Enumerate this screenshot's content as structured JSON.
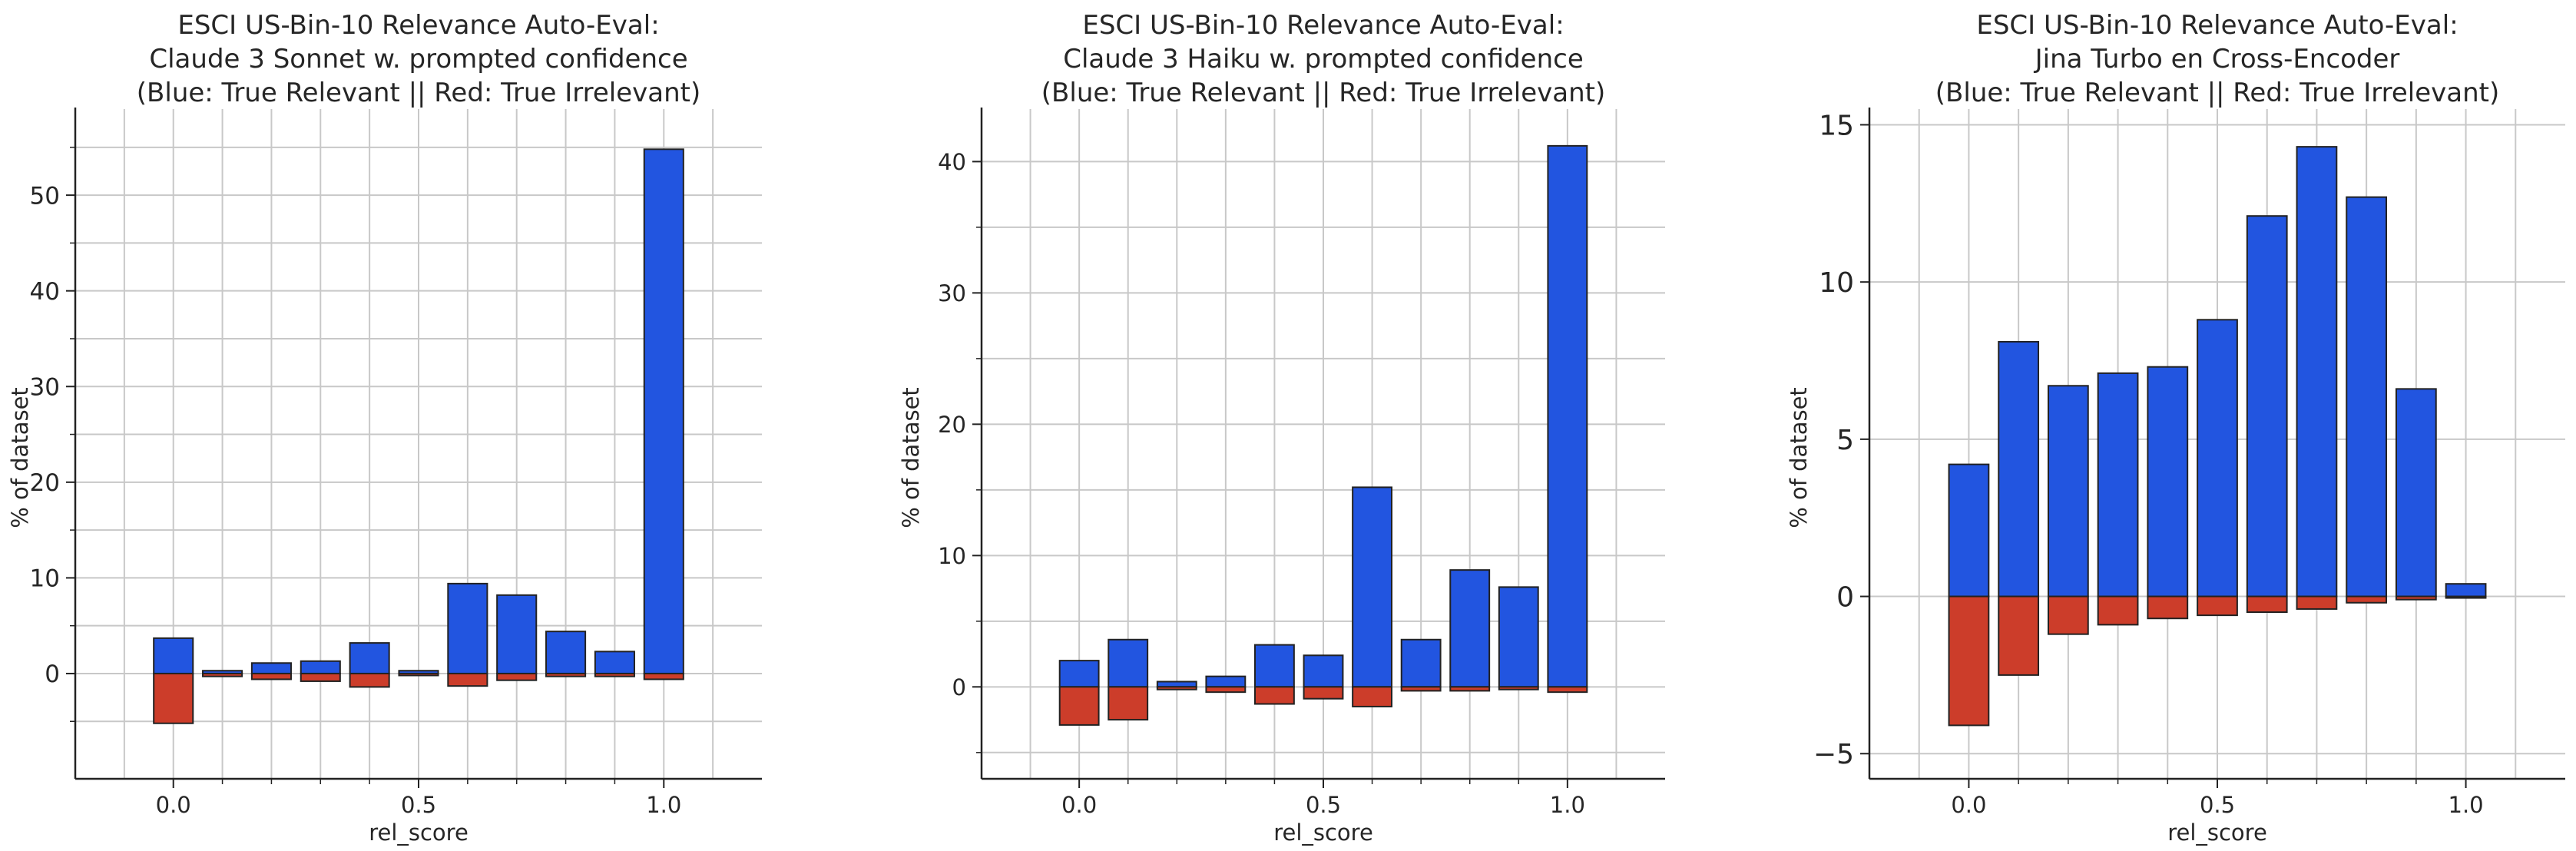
{
  "colors": {
    "relevant": "#2255e0",
    "irrelevant": "#cc3d2a",
    "edge": "#222222",
    "grid": "#c8c8c8",
    "axis": "#222222"
  },
  "chart_data": [
    {
      "type": "bar",
      "title_lines": [
        "ESCI US-Bin-10 Relevance Auto-Eval:",
        "Claude 3 Sonnet w. prompted confidence",
        "(Blue: True Relevant || Red: True Irrelevant)"
      ],
      "xlabel": "rel_score",
      "ylabel": "% of dataset",
      "xlim": [
        -0.2,
        1.2
      ],
      "ylim": [
        -11,
        59
      ],
      "xticks": [
        0.0,
        0.5,
        1.0
      ],
      "xtick_labels": [
        "0.0",
        "0.5",
        "1.0"
      ],
      "yticks": [
        0,
        10,
        20,
        30,
        40,
        50
      ],
      "ytick_labels": [
        "0",
        "10",
        "20",
        "30",
        "40",
        "50"
      ],
      "minor_yticks": [
        -5,
        5,
        15,
        25,
        35,
        45,
        55
      ],
      "grid": true,
      "x": [
        0.0,
        0.1,
        0.2,
        0.3,
        0.4,
        0.5,
        0.6,
        0.7,
        0.8,
        0.9,
        1.0
      ],
      "series": [
        {
          "name": "True Relevant",
          "values": [
            3.7,
            0.3,
            1.1,
            1.3,
            3.2,
            0.3,
            9.4,
            8.2,
            4.4,
            2.3,
            54.8
          ]
        },
        {
          "name": "True Irrelevant",
          "values": [
            -5.2,
            -0.3,
            -0.6,
            -0.8,
            -1.4,
            -0.2,
            -1.3,
            -0.7,
            -0.3,
            -0.3,
            -0.6
          ]
        }
      ]
    },
    {
      "type": "bar",
      "title_lines": [
        "ESCI US-Bin-10 Relevance Auto-Eval:",
        "Claude 3 Haiku w. prompted confidence",
        "(Blue: True Relevant || Red: True Irrelevant)"
      ],
      "xlabel": "rel_score",
      "ylabel": "% of dataset",
      "xlim": [
        -0.2,
        1.2
      ],
      "ylim": [
        -7,
        44
      ],
      "xticks": [
        0.0,
        0.5,
        1.0
      ],
      "xtick_labels": [
        "0.0",
        "0.5",
        "1.0"
      ],
      "yticks": [
        0,
        10,
        20,
        30,
        40
      ],
      "ytick_labels": [
        "0",
        "10",
        "20",
        "30",
        "40"
      ],
      "minor_yticks": [
        -5,
        5,
        15,
        25,
        35
      ],
      "grid": true,
      "x": [
        0.0,
        0.1,
        0.2,
        0.3,
        0.4,
        0.5,
        0.6,
        0.7,
        0.8,
        0.9,
        1.0
      ],
      "series": [
        {
          "name": "True Relevant",
          "values": [
            2.0,
            3.6,
            0.4,
            0.8,
            3.2,
            2.4,
            15.2,
            3.6,
            8.9,
            7.6,
            41.2
          ]
        },
        {
          "name": "True Irrelevant",
          "values": [
            -2.9,
            -2.5,
            -0.2,
            -0.4,
            -1.3,
            -0.9,
            -1.5,
            -0.3,
            -0.3,
            -0.2,
            -0.4
          ]
        }
      ]
    },
    {
      "type": "bar",
      "title_lines": [
        "ESCI US-Bin-10 Relevance Auto-Eval:",
        "Jina Turbo en Cross-Encoder",
        "(Blue: True Relevant || Red: True Irrelevant)"
      ],
      "xlabel": "rel_score",
      "ylabel": "% of dataset",
      "xlim": [
        -0.2,
        1.2
      ],
      "ylim": [
        -5.8,
        15.5
      ],
      "xticks": [
        0.0,
        0.5,
        1.0
      ],
      "xtick_labels": [
        "0.0",
        "0.5",
        "1.0"
      ],
      "yticks": [
        -5,
        0,
        5,
        10,
        15
      ],
      "ytick_labels": [
        "−5",
        "0",
        "5",
        "10",
        "15"
      ],
      "minor_yticks": [],
      "grid": true,
      "x": [
        0.0,
        0.1,
        0.2,
        0.3,
        0.4,
        0.5,
        0.6,
        0.7,
        0.8,
        0.9,
        1.0
      ],
      "series": [
        {
          "name": "True Relevant",
          "values": [
            4.2,
            8.1,
            6.7,
            7.1,
            7.3,
            8.8,
            12.1,
            14.3,
            12.7,
            6.6,
            0.4
          ]
        },
        {
          "name": "True Irrelevant",
          "values": [
            -4.1,
            -2.5,
            -1.2,
            -0.9,
            -0.7,
            -0.6,
            -0.5,
            -0.4,
            -0.2,
            -0.1,
            0.0
          ]
        }
      ]
    }
  ]
}
